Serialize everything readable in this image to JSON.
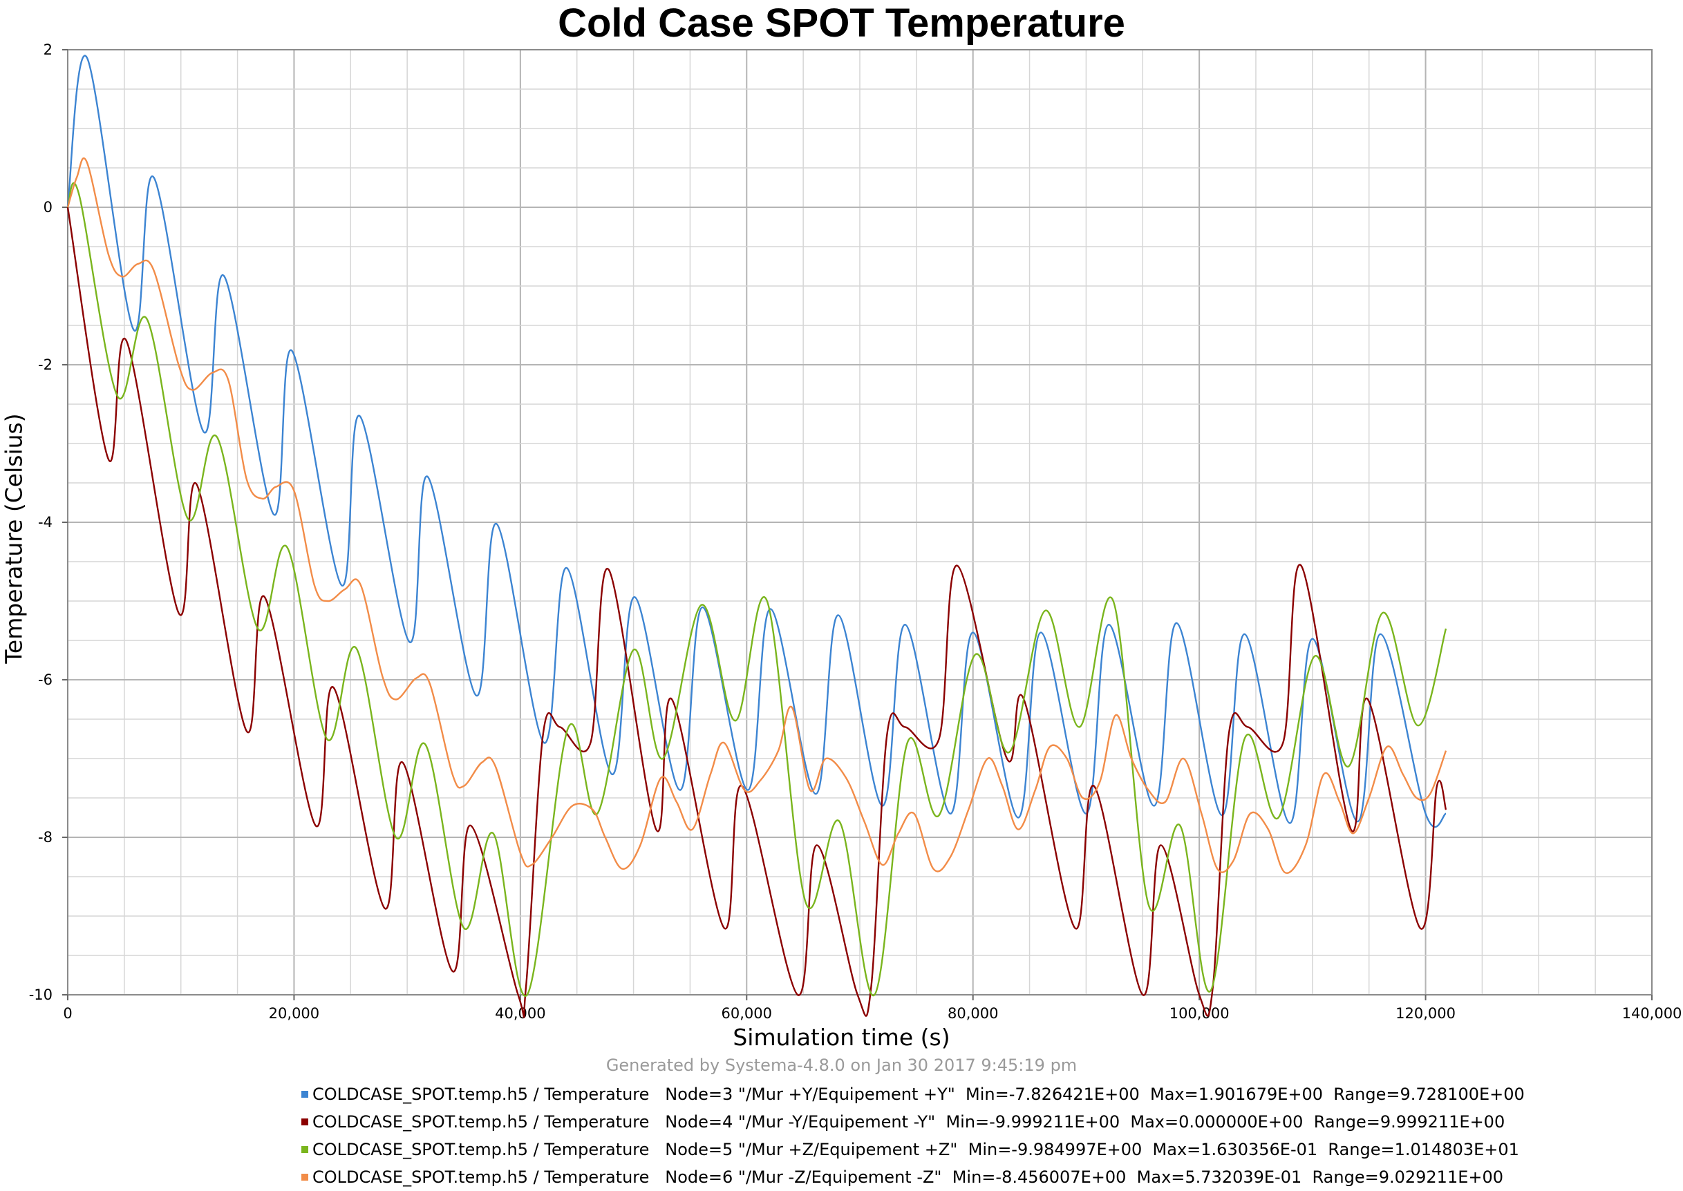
{
  "chart_data": {
    "type": "line",
    "title": "Cold Case SPOT Temperature",
    "xlabel": "Simulation time (s)",
    "ylabel": "Temperature (Celsius)",
    "xlim": [
      0,
      140000
    ],
    "ylim": [
      -10,
      2
    ],
    "x_ticks": [
      0,
      20000,
      40000,
      60000,
      80000,
      100000,
      120000,
      140000
    ],
    "x_tick_labels": [
      "0",
      "20,000",
      "40,000",
      "60,000",
      "80,000",
      "100,000",
      "120,000",
      "140,000"
    ],
    "y_ticks": [
      2,
      0,
      -2,
      -4,
      -6,
      -8,
      -10
    ],
    "y_tick_labels": [
      "2",
      "0",
      "-2",
      "-4",
      "-6",
      "-8",
      "-10"
    ],
    "grid": true,
    "legend_position": "bottom",
    "footer": "Generated by Systema-4.8.0 on Jan 30 2017 9:45:19 pm",
    "series": [
      {
        "name": "COLDCASE_SPOT.temp.h5 / Temperature   Node=3 \"/Mur +Y/Equipement +Y\"  Min=-7.826421E+00  Max=1.901679E+00  Range=9.728100E+00",
        "color": "#3c84d2",
        "points": [
          [
            0,
            0
          ],
          [
            1700,
            1.9
          ],
          [
            5800,
            -1.55
          ],
          [
            7600,
            0.38
          ],
          [
            12000,
            -2.85
          ],
          [
            13800,
            -0.87
          ],
          [
            18200,
            -3.9
          ],
          [
            19800,
            -1.82
          ],
          [
            24200,
            -4.8
          ],
          [
            25800,
            -2.65
          ],
          [
            30200,
            -5.52
          ],
          [
            31800,
            -3.42
          ],
          [
            36100,
            -6.2
          ],
          [
            37900,
            -4.02
          ],
          [
            42100,
            -6.8
          ],
          [
            44100,
            -4.58
          ],
          [
            48100,
            -7.2
          ],
          [
            50100,
            -4.95
          ],
          [
            54100,
            -7.4
          ],
          [
            56100,
            -5.08
          ],
          [
            60100,
            -7.4
          ],
          [
            62100,
            -5.1
          ],
          [
            66100,
            -7.45
          ],
          [
            68100,
            -5.18
          ],
          [
            72000,
            -7.6
          ],
          [
            74000,
            -5.3
          ],
          [
            78000,
            -7.7
          ],
          [
            80000,
            -5.4
          ],
          [
            84000,
            -7.75
          ],
          [
            86000,
            -5.4
          ],
          [
            90000,
            -7.7
          ],
          [
            92000,
            -5.3
          ],
          [
            96000,
            -7.6
          ],
          [
            98000,
            -5.28
          ],
          [
            102000,
            -7.72
          ],
          [
            104000,
            -5.42
          ],
          [
            108000,
            -7.82
          ],
          [
            110000,
            -5.48
          ],
          [
            114000,
            -7.8
          ],
          [
            116000,
            -5.42
          ],
          [
            120000,
            -7.7
          ],
          [
            121800,
            -7.7
          ]
        ]
      },
      {
        "name": "COLDCASE_SPOT.temp.h5 / Temperature   Node=4 \"/Mur -Y/Equipement -Y\"  Min=-9.999211E+00  Max=0.000000E+00  Range=9.999211E+00",
        "color": "#8b0000",
        "points": [
          [
            0,
            0
          ],
          [
            3600,
            -3.2
          ],
          [
            5200,
            -1.7
          ],
          [
            9800,
            -5.15
          ],
          [
            11400,
            -3.52
          ],
          [
            15800,
            -6.65
          ],
          [
            17400,
            -4.95
          ],
          [
            21900,
            -7.85
          ],
          [
            23500,
            -6.1
          ],
          [
            28000,
            -8.9
          ],
          [
            29600,
            -7.05
          ],
          [
            34000,
            -9.7
          ],
          [
            35600,
            -7.85
          ],
          [
            39800,
            -10
          ],
          [
            40500,
            -9.9
          ],
          [
            42000,
            -6.7
          ],
          [
            43500,
            -6.6
          ],
          [
            46200,
            -6.8
          ],
          [
            47800,
            -4.6
          ],
          [
            52000,
            -7.9
          ],
          [
            53400,
            -6.25
          ],
          [
            58000,
            -9.15
          ],
          [
            59600,
            -7.35
          ],
          [
            64500,
            -10
          ],
          [
            66200,
            -8.1
          ],
          [
            69800,
            -10
          ],
          [
            71000,
            -9.9
          ],
          [
            72400,
            -6.7
          ],
          [
            74000,
            -6.6
          ],
          [
            77000,
            -6.75
          ],
          [
            78600,
            -4.55
          ],
          [
            83000,
            -7.0
          ],
          [
            84500,
            -6.25
          ],
          [
            89000,
            -9.15
          ],
          [
            90700,
            -7.35
          ],
          [
            95000,
            -10
          ],
          [
            96600,
            -8.1
          ],
          [
            100000,
            -10
          ],
          [
            101200,
            -9.9
          ],
          [
            102600,
            -6.7
          ],
          [
            104300,
            -6.6
          ],
          [
            107400,
            -6.8
          ],
          [
            109000,
            -4.55
          ],
          [
            113400,
            -7.9
          ],
          [
            114900,
            -6.25
          ],
          [
            119500,
            -9.15
          ],
          [
            121000,
            -7.35
          ],
          [
            121800,
            -7.65
          ]
        ]
      },
      {
        "name": "COLDCASE_SPOT.temp.h5 / Temperature   Node=5 \"/Mur +Z/Equipement +Z\"  Min=-9.984997E+00  Max=1.630356E-01  Range=1.014803E+01",
        "color": "#7ab51d",
        "points": [
          [
            0,
            0
          ],
          [
            1000,
            0.16
          ],
          [
            4400,
            -2.4
          ],
          [
            7000,
            -1.42
          ],
          [
            10600,
            -3.95
          ],
          [
            13200,
            -2.92
          ],
          [
            16800,
            -5.35
          ],
          [
            19400,
            -4.32
          ],
          [
            22900,
            -6.75
          ],
          [
            25500,
            -5.6
          ],
          [
            29000,
            -8.0
          ],
          [
            31600,
            -6.82
          ],
          [
            35000,
            -9.15
          ],
          [
            37600,
            -7.95
          ],
          [
            40600,
            -10
          ],
          [
            44200,
            -6.62
          ],
          [
            46800,
            -7.7
          ],
          [
            50000,
            -5.62
          ],
          [
            52600,
            -7.0
          ],
          [
            56000,
            -5.05
          ],
          [
            59000,
            -6.52
          ],
          [
            61800,
            -5.0
          ],
          [
            65200,
            -8.82
          ],
          [
            68200,
            -7.8
          ],
          [
            71300,
            -10
          ],
          [
            74200,
            -6.8
          ],
          [
            77000,
            -7.72
          ],
          [
            80200,
            -5.68
          ],
          [
            83200,
            -6.92
          ],
          [
            86400,
            -5.12
          ],
          [
            89400,
            -6.6
          ],
          [
            92400,
            -5.0
          ],
          [
            95500,
            -8.85
          ],
          [
            98300,
            -7.85
          ],
          [
            101000,
            -9.95
          ],
          [
            104000,
            -6.75
          ],
          [
            107000,
            -7.75
          ],
          [
            110200,
            -5.7
          ],
          [
            113200,
            -7.1
          ],
          [
            116200,
            -5.15
          ],
          [
            119300,
            -6.58
          ],
          [
            121800,
            -5.35
          ]
        ]
      },
      {
        "name": "COLDCASE_SPOT.temp.h5 / Temperature   Node=6 \"/Mur -Z/Equipement -Z\"  Min=-8.456007E+00  Max=5.732039E-01  Range=9.029211E+00",
        "color": "#f28c48",
        "points": [
          [
            0,
            0
          ],
          [
            800,
            0.38
          ],
          [
            1700,
            0.57
          ],
          [
            3600,
            -0.6
          ],
          [
            4800,
            -0.88
          ],
          [
            6200,
            -0.72
          ],
          [
            7600,
            -0.8
          ],
          [
            9800,
            -2.0
          ],
          [
            11000,
            -2.32
          ],
          [
            12800,
            -2.1
          ],
          [
            14200,
            -2.2
          ],
          [
            15800,
            -3.45
          ],
          [
            17200,
            -3.7
          ],
          [
            18400,
            -3.55
          ],
          [
            20000,
            -3.6
          ],
          [
            21800,
            -4.8
          ],
          [
            23000,
            -5.0
          ],
          [
            24500,
            -4.85
          ],
          [
            25900,
            -4.8
          ],
          [
            27800,
            -5.95
          ],
          [
            29000,
            -6.25
          ],
          [
            30800,
            -5.98
          ],
          [
            32000,
            -6.05
          ],
          [
            34000,
            -7.2
          ],
          [
            35000,
            -7.35
          ],
          [
            36600,
            -7.05
          ],
          [
            37800,
            -7.1
          ],
          [
            40000,
            -8.2
          ],
          [
            41000,
            -8.35
          ],
          [
            42800,
            -8.0
          ],
          [
            44600,
            -7.6
          ],
          [
            46400,
            -7.65
          ],
          [
            47500,
            -8.0
          ],
          [
            49000,
            -8.4
          ],
          [
            50600,
            -8.1
          ],
          [
            52400,
            -7.25
          ],
          [
            53800,
            -7.55
          ],
          [
            55200,
            -7.9
          ],
          [
            56800,
            -7.2
          ],
          [
            58000,
            -6.8
          ],
          [
            59800,
            -7.4
          ],
          [
            61200,
            -7.28
          ],
          [
            62800,
            -6.9
          ],
          [
            64000,
            -6.35
          ],
          [
            65600,
            -7.4
          ],
          [
            67000,
            -7.0
          ],
          [
            68800,
            -7.25
          ],
          [
            70400,
            -7.8
          ],
          [
            72000,
            -8.35
          ],
          [
            73400,
            -7.95
          ],
          [
            74800,
            -7.7
          ],
          [
            76500,
            -8.4
          ],
          [
            78000,
            -8.25
          ],
          [
            79600,
            -7.65
          ],
          [
            81300,
            -7.0
          ],
          [
            82600,
            -7.35
          ],
          [
            84000,
            -7.9
          ],
          [
            85500,
            -7.4
          ],
          [
            86800,
            -6.85
          ],
          [
            88300,
            -7.0
          ],
          [
            89700,
            -7.5
          ],
          [
            91200,
            -7.3
          ],
          [
            92600,
            -6.45
          ],
          [
            94000,
            -7.0
          ],
          [
            95500,
            -7.4
          ],
          [
            97000,
            -7.55
          ],
          [
            98600,
            -7.0
          ],
          [
            100200,
            -7.7
          ],
          [
            101600,
            -8.4
          ],
          [
            103000,
            -8.3
          ],
          [
            104500,
            -7.7
          ],
          [
            106100,
            -7.9
          ],
          [
            107600,
            -8.45
          ],
          [
            109400,
            -8.1
          ],
          [
            111000,
            -7.2
          ],
          [
            112400,
            -7.55
          ],
          [
            113600,
            -7.95
          ],
          [
            115000,
            -7.5
          ],
          [
            116600,
            -6.85
          ],
          [
            118000,
            -7.2
          ],
          [
            119200,
            -7.5
          ],
          [
            120400,
            -7.45
          ],
          [
            121800,
            -6.9
          ]
        ]
      }
    ]
  }
}
